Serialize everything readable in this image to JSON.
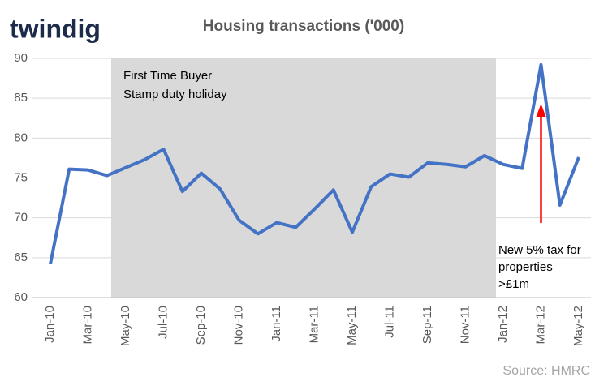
{
  "logo": "twindig",
  "chart_data": {
    "type": "line",
    "title": "Housing transactions ('000)",
    "categories": [
      "Jan-10",
      null,
      "Mar-10",
      null,
      "May-10",
      null,
      "Jul-10",
      null,
      "Sep-10",
      null,
      "Nov-10",
      null,
      "Jan-11",
      null,
      "Mar-11",
      null,
      "May-11",
      null,
      "Jul-11",
      null,
      "Sep-11",
      null,
      "Nov-11",
      null,
      "Jan-12",
      null,
      "Mar-12",
      null,
      "May-12"
    ],
    "values": [
      64.2,
      76.1,
      76.0,
      75.3,
      76.3,
      77.3,
      78.6,
      73.3,
      75.6,
      73.6,
      69.7,
      68.0,
      69.4,
      68.8,
      71.1,
      73.5,
      68.2,
      73.9,
      75.5,
      75.1,
      76.9,
      76.7,
      76.4,
      77.8,
      76.7,
      76.2,
      89.2,
      71.6,
      77.6
    ],
    "color": "#4472c4",
    "ylim": [
      60,
      90
    ],
    "yticks": [
      60,
      65,
      70,
      75,
      80,
      85,
      90
    ],
    "grid": true,
    "annotations": {
      "holiday": [
        "First Time Buyer",
        "Stamp duty holiday"
      ],
      "tax": [
        "New 5% tax for",
        "properties",
        ">£1m"
      ]
    },
    "source": "Source: HMRC"
  }
}
